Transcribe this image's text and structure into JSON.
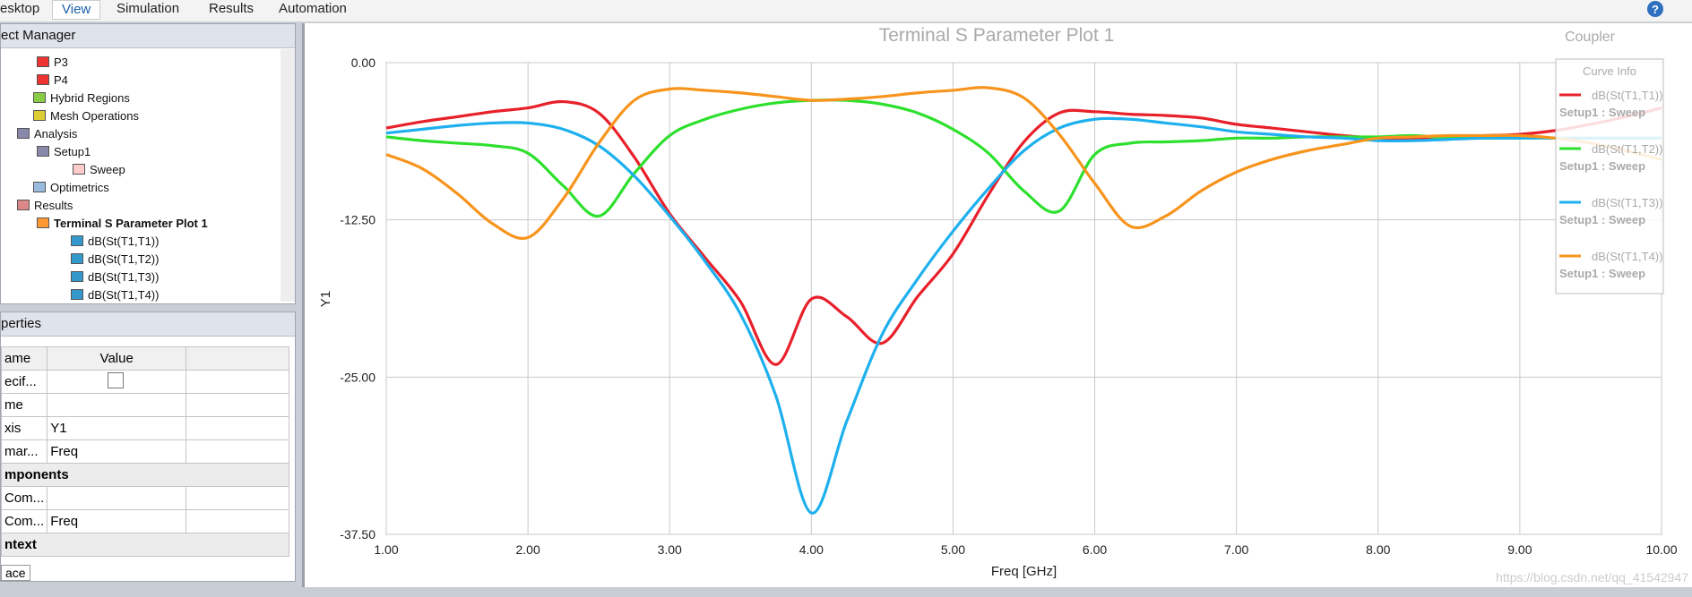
{
  "menu": [
    "esktop",
    "View",
    "Simulation",
    "Results",
    "Automation"
  ],
  "project_manager": {
    "title": "ect Manager",
    "items": [
      "P3",
      "P4",
      "Hybrid Regions",
      "Mesh Operations",
      "Analysis",
      "Setup1",
      "Sweep",
      "Optimetrics",
      "Results",
      "Terminal S Parameter Plot 1",
      "dB(St(T1,T1))",
      "dB(St(T1,T2))",
      "dB(St(T1,T3))",
      "dB(St(T1,T4))"
    ]
  },
  "properties": {
    "title": "perties",
    "header": [
      "ame",
      "Value"
    ],
    "rows": [
      [
        "ecif..."
      ],
      [
        "me"
      ],
      [
        "xis",
        "Y1"
      ],
      [
        "mar...",
        "Freq"
      ],
      [
        "mponents"
      ],
      [
        "Com..."
      ],
      [
        "Com...",
        "Freq"
      ],
      [
        "ntext"
      ]
    ],
    "tab": "ace"
  },
  "chart_data": {
    "type": "line",
    "title": "Terminal S Parameter Plot 1",
    "corner_label": "Coupler",
    "x_label": "Freq [GHz]",
    "y_label": "Y1",
    "legend_title": "Curve Info",
    "legend": "upper right",
    "grid": true,
    "watermark": "https://blog.csdn.net/qq_41542947",
    "x": [
      1.0,
      1.25,
      1.5,
      1.75,
      2.0,
      2.25,
      2.5,
      2.75,
      3.0,
      3.25,
      3.5,
      3.75,
      4.0,
      4.25,
      4.5,
      4.75,
      5.0,
      5.25,
      5.5,
      5.75,
      6.0,
      6.25,
      6.5,
      6.75,
      7.0,
      7.25,
      7.5,
      7.75,
      8.0,
      8.25,
      8.5,
      8.75,
      9.0,
      9.25,
      9.5,
      9.75,
      10.0
    ],
    "xlim": [
      1,
      10
    ],
    "xticks": [
      {
        "value": 1,
        "label": "1.00"
      },
      {
        "value": 2,
        "label": "2.00"
      },
      {
        "value": 3,
        "label": "3.00"
      },
      {
        "value": 4,
        "label": "4.00"
      },
      {
        "value": 5,
        "label": "5.00"
      },
      {
        "value": 6,
        "label": "6.00"
      },
      {
        "value": 7,
        "label": "7.00"
      },
      {
        "value": 8,
        "label": "8.00"
      },
      {
        "value": 9,
        "label": "9.00"
      },
      {
        "value": 10,
        "label": "10.00"
      }
    ],
    "ylim": [
      -37.5,
      0
    ],
    "yticks": [
      {
        "value": 0,
        "label": "0.00"
      },
      {
        "value": -12.5,
        "label": "-12.50"
      },
      {
        "value": -25,
        "label": "-25.00"
      },
      {
        "value": -37.5,
        "label": "-37.50"
      }
    ],
    "series": [
      {
        "name": "dB(St(T1,T1))",
        "solution": "Setup1 : Sweep",
        "color": "#e8202a",
        "values": [
          -5.2,
          -4.7,
          -4.3,
          -3.9,
          -3.6,
          -3.1,
          -4.0,
          -7.5,
          -12.0,
          -15.5,
          -19.0,
          -24.0,
          -18.8,
          -20.2,
          -22.3,
          -18.6,
          -15.2,
          -10.5,
          -6.3,
          -4.0,
          -3.9,
          -4.1,
          -4.2,
          -4.4,
          -4.9,
          -5.2,
          -5.5,
          -5.8,
          -6.0,
          -6.1,
          -5.9,
          -5.8,
          -5.7,
          -5.4,
          -4.9,
          -4.3,
          -3.6
        ]
      },
      {
        "name": "dB(St(T1,T2))",
        "solution": "Setup1 : Sweep",
        "color": "#2ee02e",
        "values": [
          -5.9,
          -6.2,
          -6.4,
          -6.6,
          -7.2,
          -9.8,
          -12.2,
          -8.8,
          -5.8,
          -4.5,
          -3.7,
          -3.2,
          -3.0,
          -3.0,
          -3.3,
          -4.0,
          -5.3,
          -7.2,
          -10.2,
          -11.8,
          -7.3,
          -6.4,
          -6.3,
          -6.2,
          -6.0,
          -6.0,
          -5.9,
          -5.9,
          -5.9,
          -5.8,
          -6.0,
          -6.0,
          -6.0,
          -6.0,
          -6.0,
          -6.0,
          -6.0
        ]
      },
      {
        "name": "dB(St(T1,T3))",
        "solution": "Setup1 : Sweep",
        "color": "#1eb0ee",
        "values": [
          -5.6,
          -5.3,
          -5.0,
          -4.8,
          -4.8,
          -5.3,
          -6.6,
          -9.0,
          -12.2,
          -15.8,
          -20.0,
          -26.5,
          -35.8,
          -28.5,
          -21.6,
          -17.2,
          -13.4,
          -10.0,
          -7.0,
          -5.2,
          -4.5,
          -4.5,
          -4.8,
          -5.1,
          -5.5,
          -5.7,
          -5.9,
          -6.0,
          -6.2,
          -6.2,
          -6.1,
          -6.0,
          -6.0,
          -6.0,
          -6.0,
          -6.0,
          -6.0
        ]
      },
      {
        "name": "dB(St(T1,T4))",
        "solution": "Setup1 : Sweep",
        "color": "#f7941d",
        "values": [
          -7.3,
          -8.4,
          -10.4,
          -12.8,
          -13.9,
          -10.8,
          -6.4,
          -3.0,
          -2.1,
          -2.2,
          -2.4,
          -2.7,
          -3.0,
          -2.9,
          -2.7,
          -2.4,
          -2.2,
          -2.0,
          -2.8,
          -5.7,
          -9.6,
          -13.0,
          -12.2,
          -10.2,
          -8.7,
          -7.7,
          -7.0,
          -6.5,
          -6.0,
          -5.9,
          -5.8,
          -5.8,
          -5.8,
          -6.0,
          -6.4,
          -7.0,
          -7.7
        ]
      }
    ]
  }
}
